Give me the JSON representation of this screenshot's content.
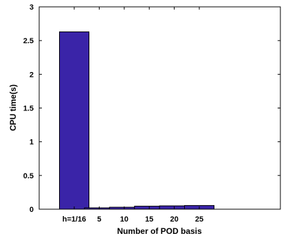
{
  "chart_data": {
    "type": "bar",
    "title": "",
    "xlabel": "Number of POD basis",
    "ylabel": "CPU time(s)",
    "categories": [
      "h=1/16",
      "5",
      "10",
      "15",
      "20",
      "25"
    ],
    "values": [
      2.63,
      0.02,
      0.03,
      0.045,
      0.05,
      0.055
    ],
    "ylim": [
      0,
      3
    ],
    "yticks": [
      0,
      0.5,
      1,
      1.5,
      2,
      2.5,
      3
    ],
    "ytick_labels": [
      "0",
      "0.5",
      "1",
      "1.5",
      "2",
      "2.5",
      "3"
    ],
    "grid": false,
    "bar_color": "#3a24a8",
    "bar_edge_color": "#000000"
  }
}
